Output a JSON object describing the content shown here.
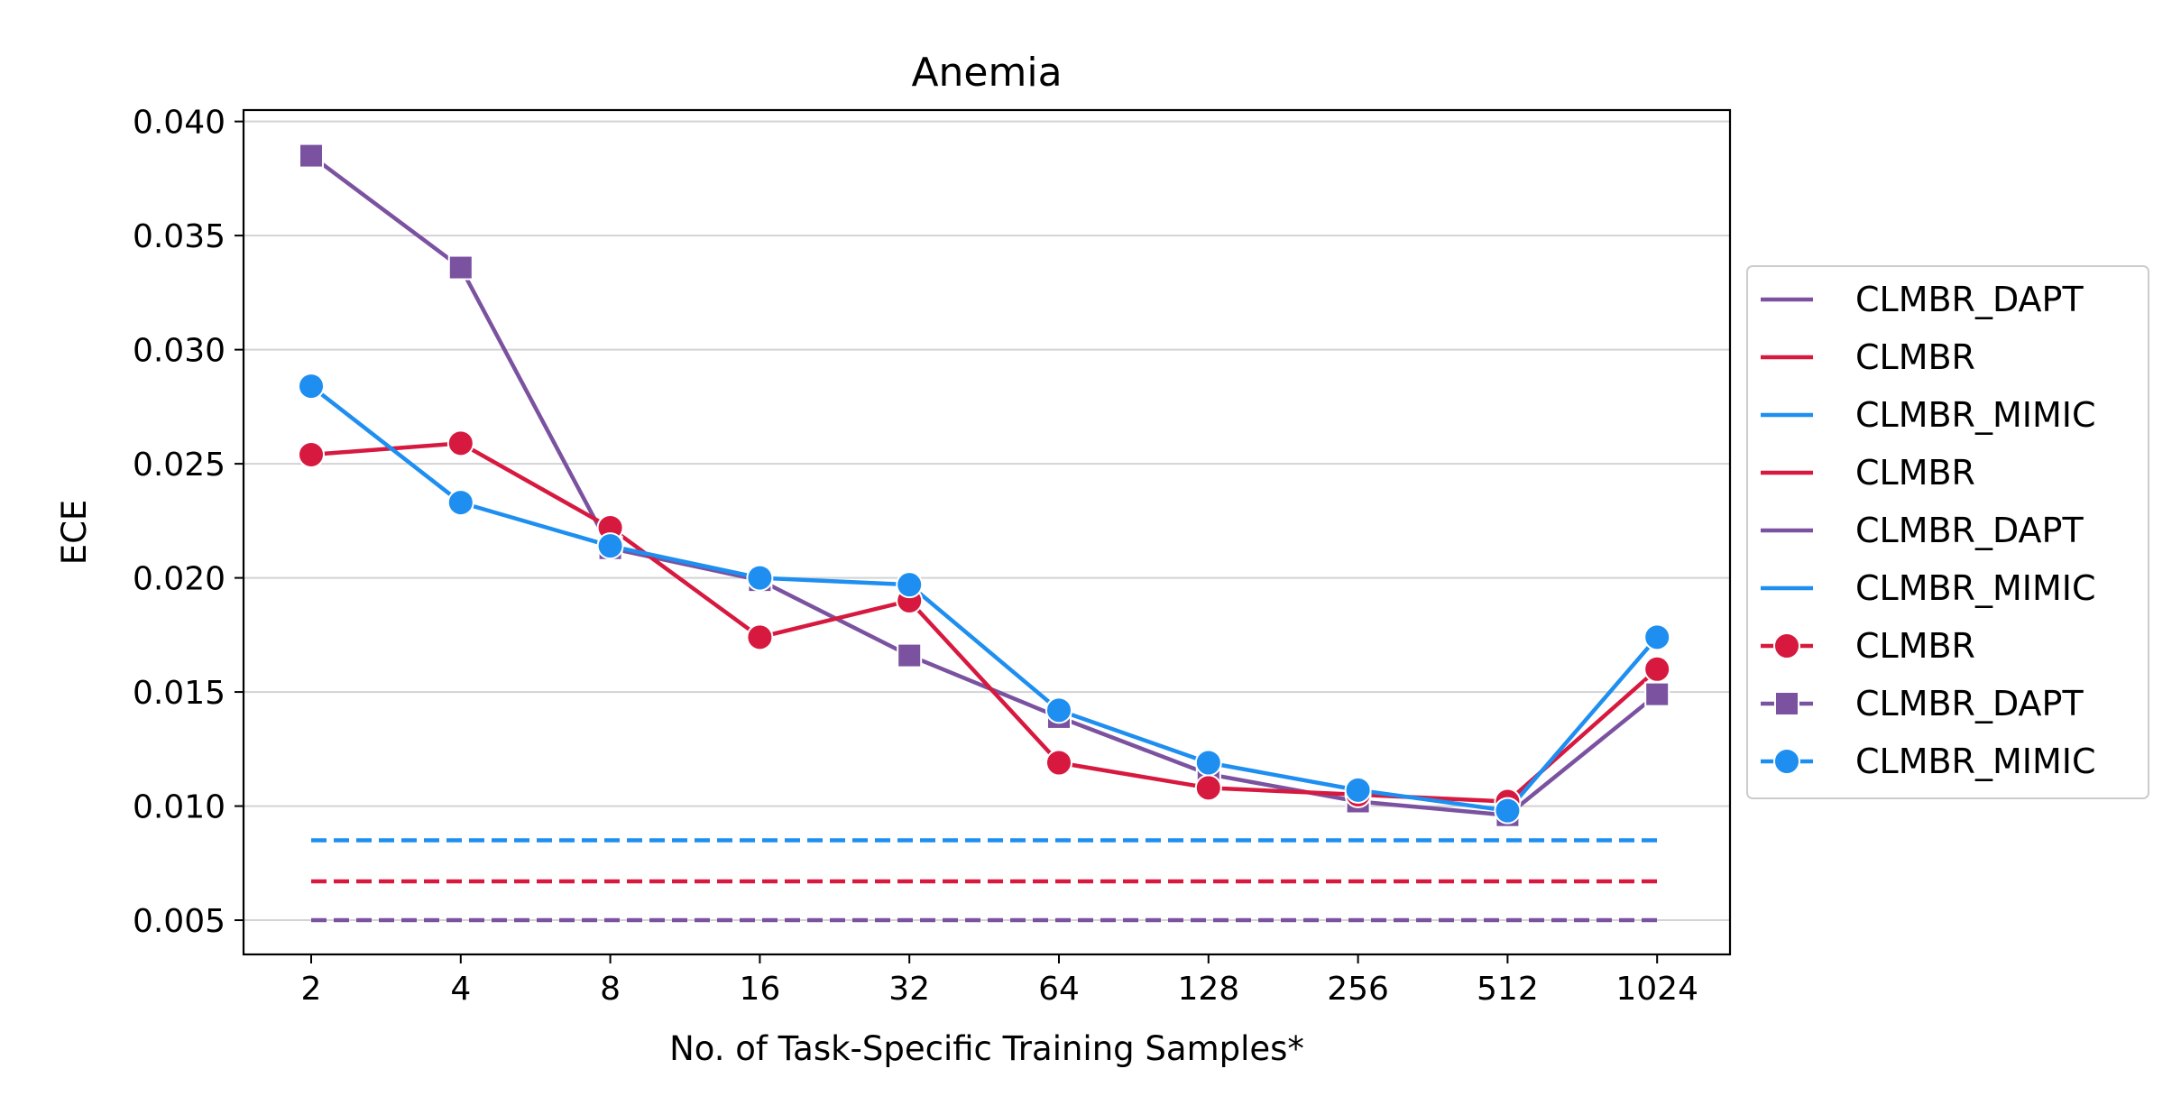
{
  "chart_data": {
    "type": "line",
    "title": "Anemia",
    "xlabel": "No. of Task-Specific Training Samples*",
    "ylabel": "ECE",
    "categories": [
      "2",
      "4",
      "8",
      "16",
      "32",
      "64",
      "128",
      "256",
      "512",
      "1024"
    ],
    "ylim": [
      0.0035,
      0.0405
    ],
    "yticks": [
      0.005,
      0.01,
      0.015,
      0.02,
      0.025,
      0.03,
      0.035,
      0.04
    ],
    "ytick_labels": [
      "0.005",
      "0.010",
      "0.015",
      "0.020",
      "0.025",
      "0.030",
      "0.035",
      "0.040"
    ],
    "grid": "horizontal",
    "legend_position": "right",
    "colors": {
      "CLMBR_DAPT": "#7b52a0",
      "CLMBR": "#d7193f",
      "CLMBR_MIMIC": "#1e8ff0"
    },
    "baselines": [
      {
        "name": "CLMBR_DAPT",
        "value": 0.005,
        "style": "dashed"
      },
      {
        "name": "CLMBR",
        "value": 0.0067,
        "style": "dashed"
      },
      {
        "name": "CLMBR_MIMIC",
        "value": 0.0085,
        "style": "dashed"
      }
    ],
    "series": [
      {
        "name": "CLMBR",
        "marker": "circle",
        "values": [
          0.0254,
          0.0259,
          0.0222,
          0.0174,
          0.019,
          0.0119,
          0.0108,
          0.0105,
          0.0102,
          0.016
        ]
      },
      {
        "name": "CLMBR_DAPT",
        "marker": "square",
        "values": [
          0.0385,
          0.0336,
          0.0213,
          0.0199,
          0.0166,
          0.0139,
          0.0114,
          0.0102,
          0.0096,
          0.0149
        ]
      },
      {
        "name": "CLMBR_MIMIC",
        "marker": "circle",
        "values": [
          0.0284,
          0.0233,
          0.0214,
          0.02,
          0.0197,
          0.0142,
          0.0119,
          0.0107,
          0.0098,
          0.0174
        ]
      }
    ],
    "legend": [
      {
        "label": "CLMBR_DAPT",
        "series": "CLMBR_DAPT",
        "marker": "none"
      },
      {
        "label": "CLMBR",
        "series": "CLMBR",
        "marker": "none"
      },
      {
        "label": "CLMBR_MIMIC",
        "series": "CLMBR_MIMIC",
        "marker": "none"
      },
      {
        "label": "CLMBR",
        "series": "CLMBR",
        "marker": "none"
      },
      {
        "label": "CLMBR_DAPT",
        "series": "CLMBR_DAPT",
        "marker": "none"
      },
      {
        "label": "CLMBR_MIMIC",
        "series": "CLMBR_MIMIC",
        "marker": "none"
      },
      {
        "label": "CLMBR",
        "series": "CLMBR",
        "marker": "circle"
      },
      {
        "label": "CLMBR_DAPT",
        "series": "CLMBR_DAPT",
        "marker": "square"
      },
      {
        "label": "CLMBR_MIMIC",
        "series": "CLMBR_MIMIC",
        "marker": "circle"
      }
    ]
  }
}
